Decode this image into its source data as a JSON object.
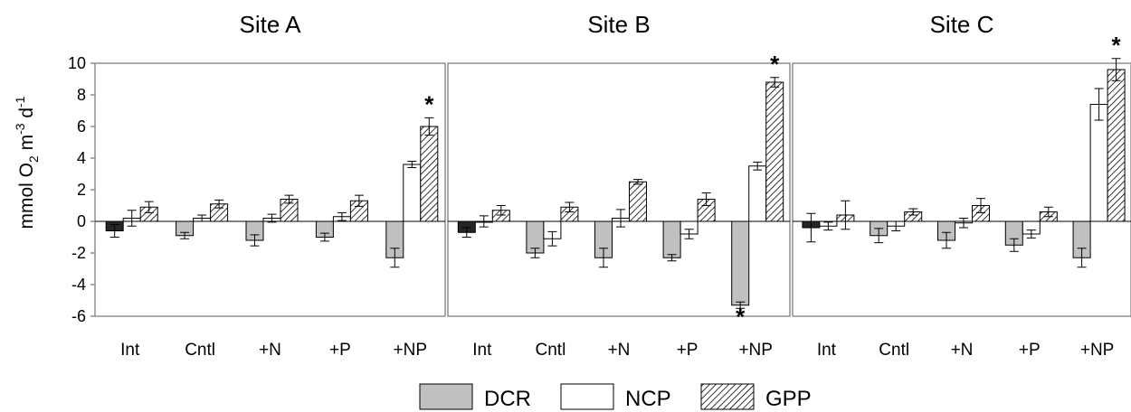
{
  "chart_data": {
    "type": "bar",
    "ylabel": {
      "prefix": "mmol O",
      "sub": "2",
      "mid": " m",
      "sup1": "-3",
      "space": "  d",
      "sup2": "-1"
    },
    "ylim": [
      -6,
      10
    ],
    "yticks": [
      10,
      8,
      6,
      4,
      2,
      0,
      -2,
      -4,
      -6
    ],
    "categories": [
      "Int",
      "Cntl",
      "+N",
      "+P",
      "+NP"
    ],
    "series": [
      {
        "name": "Int",
        "fill": "#262626",
        "legend": false
      },
      {
        "name": "DCR",
        "fill": "#c0c0c0",
        "legend": true
      },
      {
        "name": "NCP",
        "fill": "#ffffff",
        "legend": true
      },
      {
        "name": "GPP",
        "fill": "hatch",
        "legend": true
      }
    ],
    "significance_marker": "*",
    "sites": [
      {
        "title": "Site A",
        "groups": [
          {
            "category": "Int",
            "bars": [
              {
                "series": "Int",
                "value": -0.6,
                "err": 0.4
              },
              {
                "series": "NCP",
                "value": 0.2,
                "err": 0.5
              },
              {
                "series": "GPP",
                "value": 0.9,
                "err": 0.35
              }
            ]
          },
          {
            "category": "Cntl",
            "bars": [
              {
                "series": "DCR",
                "value": -0.9,
                "err": 0.2
              },
              {
                "series": "NCP",
                "value": 0.2,
                "err": 0.2
              },
              {
                "series": "GPP",
                "value": 1.1,
                "err": 0.25
              }
            ]
          },
          {
            "category": "+N",
            "bars": [
              {
                "series": "DCR",
                "value": -1.2,
                "err": 0.35
              },
              {
                "series": "NCP",
                "value": 0.2,
                "err": 0.25
              },
              {
                "series": "GPP",
                "value": 1.4,
                "err": 0.25
              }
            ]
          },
          {
            "category": "+P",
            "bars": [
              {
                "series": "DCR",
                "value": -1.0,
                "err": 0.25
              },
              {
                "series": "NCP",
                "value": 0.3,
                "err": 0.25
              },
              {
                "series": "GPP",
                "value": 1.3,
                "err": 0.35
              }
            ]
          },
          {
            "category": "+NP",
            "bars": [
              {
                "series": "DCR",
                "value": -2.3,
                "err": 0.6
              },
              {
                "series": "NCP",
                "value": 3.6,
                "err": 0.2
              },
              {
                "series": "GPP",
                "value": 6.0,
                "err": 0.55,
                "sig": true
              }
            ]
          }
        ]
      },
      {
        "title": "Site B",
        "groups": [
          {
            "category": "Int",
            "bars": [
              {
                "series": "Int",
                "value": -0.7,
                "err": 0.3
              },
              {
                "series": "NCP",
                "value": 0.0,
                "err": 0.35
              },
              {
                "series": "GPP",
                "value": 0.7,
                "err": 0.3
              }
            ]
          },
          {
            "category": "Cntl",
            "bars": [
              {
                "series": "DCR",
                "value": -2.0,
                "err": 0.3
              },
              {
                "series": "NCP",
                "value": -1.1,
                "err": 0.45
              },
              {
                "series": "GPP",
                "value": 0.9,
                "err": 0.3
              }
            ]
          },
          {
            "category": "+N",
            "bars": [
              {
                "series": "DCR",
                "value": -2.3,
                "err": 0.6
              },
              {
                "series": "NCP",
                "value": 0.2,
                "err": 0.55
              },
              {
                "series": "GPP",
                "value": 2.5,
                "err": 0.15
              }
            ]
          },
          {
            "category": "+P",
            "bars": [
              {
                "series": "DCR",
                "value": -2.3,
                "err": 0.2
              },
              {
                "series": "NCP",
                "value": -0.8,
                "err": 0.3
              },
              {
                "series": "GPP",
                "value": 1.4,
                "err": 0.4
              }
            ]
          },
          {
            "category": "+NP",
            "bars": [
              {
                "series": "DCR",
                "value": -5.3,
                "err": 0.2,
                "sig": true
              },
              {
                "series": "NCP",
                "value": 3.5,
                "err": 0.25
              },
              {
                "series": "GPP",
                "value": 8.8,
                "err": 0.3,
                "sig": true
              }
            ]
          }
        ]
      },
      {
        "title": "Site C",
        "groups": [
          {
            "category": "Int",
            "bars": [
              {
                "series": "Int",
                "value": -0.4,
                "err": 0.9
              },
              {
                "series": "NCP",
                "value": -0.3,
                "err": 0.25
              },
              {
                "series": "GPP",
                "value": 0.4,
                "err": 0.9
              }
            ]
          },
          {
            "category": "Cntl",
            "bars": [
              {
                "series": "DCR",
                "value": -0.9,
                "err": 0.45
              },
              {
                "series": "NCP",
                "value": -0.3,
                "err": 0.3
              },
              {
                "series": "GPP",
                "value": 0.6,
                "err": 0.2
              }
            ]
          },
          {
            "category": "+N",
            "bars": [
              {
                "series": "DCR",
                "value": -1.2,
                "err": 0.5
              },
              {
                "series": "NCP",
                "value": -0.1,
                "err": 0.3
              },
              {
                "series": "GPP",
                "value": 1.0,
                "err": 0.45
              }
            ]
          },
          {
            "category": "+P",
            "bars": [
              {
                "series": "DCR",
                "value": -1.5,
                "err": 0.4
              },
              {
                "series": "NCP",
                "value": -0.8,
                "err": 0.25
              },
              {
                "series": "GPP",
                "value": 0.6,
                "err": 0.3
              }
            ]
          },
          {
            "category": "+NP",
            "bars": [
              {
                "series": "DCR",
                "value": -2.3,
                "err": 0.6
              },
              {
                "series": "NCP",
                "value": 7.4,
                "err": 1.0
              },
              {
                "series": "GPP",
                "value": 9.6,
                "err": 0.7,
                "sig": true
              }
            ]
          }
        ]
      }
    ],
    "legend": {
      "position": "bottom-center",
      "items": [
        "DCR",
        "NCP",
        "GPP"
      ]
    }
  }
}
